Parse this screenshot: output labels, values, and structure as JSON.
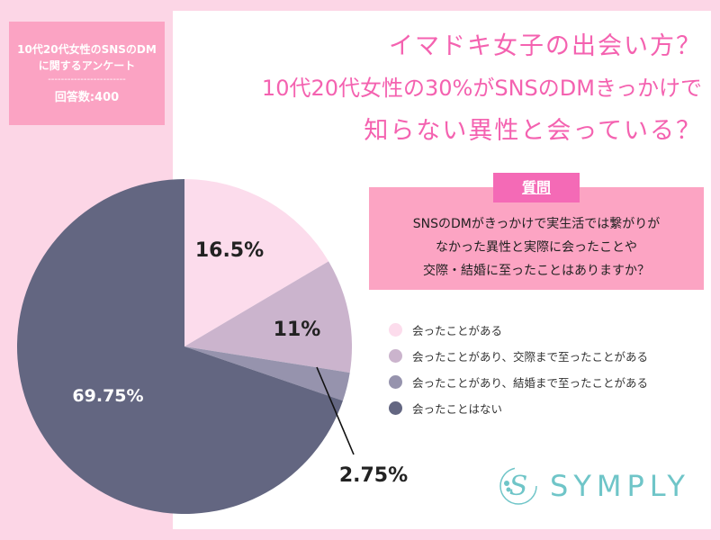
{
  "infobox": {
    "line1": "10代20代女性のSNSのDM",
    "line2": "に関するアンケート",
    "dashes": "------------------------",
    "count": "回答数:400"
  },
  "title": {
    "line1": "イマドキ女子の出会い方？",
    "line2": "10代20代女性の30%がSNSのDMきっかけで",
    "line3": "知らない異性と会っている？"
  },
  "question": {
    "tag": "質問",
    "line1": "SNSのDMがきっかけで実生活では繋がりが",
    "line2": "なかった異性と実際に会ったことや",
    "line3": "交際・結婚に至ったことはありますか？"
  },
  "logo": {
    "text": "SYMPLY",
    "color": "#6fc5c8"
  },
  "chart_data": {
    "type": "pie",
    "start": "top",
    "direction": "clockwise",
    "slices": [
      {
        "name": "会ったことがある",
        "value": 16.5,
        "label": "16.5%",
        "color": "#fcdcec"
      },
      {
        "name": "会ったことがあり、交際まで至ったことがある",
        "value": 11,
        "label": "11%",
        "color": "#cbb4cd"
      },
      {
        "name": "会ったことがあり、結婚まで至ったことがある",
        "value": 2.75,
        "label": "2.75%",
        "color": "#9693ad"
      },
      {
        "name": "会ったことはない",
        "value": 69.75,
        "label": "69.75%",
        "color": "#636681"
      }
    ],
    "legend_placement": "right"
  }
}
